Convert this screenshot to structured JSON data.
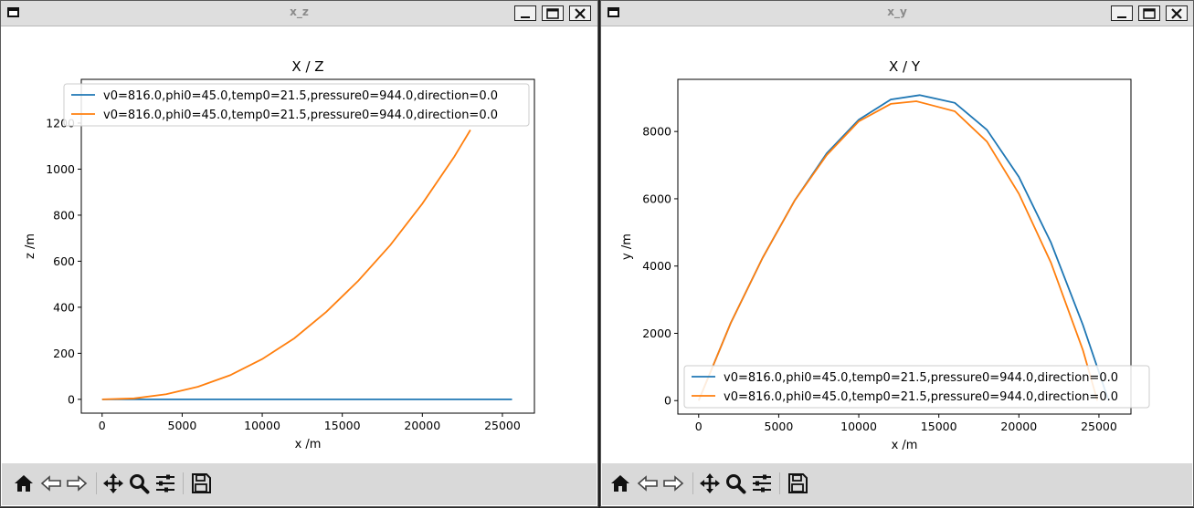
{
  "windows": [
    {
      "title": "x_z",
      "chart_data": {
        "type": "line",
        "title": "X / Z",
        "xlabel": "x /m",
        "ylabel": "z /m",
        "xlim": [
          -1300,
          27000
        ],
        "ylim": [
          -60,
          1390
        ],
        "xticks": [
          0,
          5000,
          10000,
          15000,
          20000,
          25000
        ],
        "yticks": [
          0,
          200,
          400,
          600,
          800,
          1000,
          1200
        ],
        "legend_loc": "upper left",
        "series": [
          {
            "name": "v0=816.0,phi0=45.0,temp0=21.5,pressure0=944.0,direction=0.0",
            "color": "#1f77b4",
            "x": [
              0,
              5000,
              10000,
              15000,
              20000,
              25600
            ],
            "y": [
              0,
              0,
              0,
              0,
              0,
              0
            ]
          },
          {
            "name": "v0=816.0,phi0=45.0,temp0=21.5,pressure0=944.0,direction=0.0",
            "color": "#ff7f0e",
            "x": [
              0,
              2000,
              4000,
              6000,
              8000,
              10000,
              12000,
              14000,
              16000,
              18000,
              20000,
              22000,
              23000
            ],
            "y": [
              0,
              4,
              22,
              55,
              105,
              175,
              265,
              380,
              515,
              670,
              850,
              1055,
              1170
            ]
          }
        ]
      }
    },
    {
      "title": "x_y",
      "chart_data": {
        "type": "line",
        "title": "X / Y",
        "xlabel": "x /m",
        "ylabel": "y /m",
        "xlim": [
          -1300,
          27000
        ],
        "ylim": [
          -400,
          9550
        ],
        "xticks": [
          0,
          5000,
          10000,
          15000,
          20000,
          25000
        ],
        "yticks": [
          0,
          2000,
          4000,
          6000,
          8000
        ],
        "legend_loc": "lower left",
        "series": [
          {
            "name": "v0=816.0,phi0=45.0,temp0=21.5,pressure0=944.0,direction=0.0",
            "color": "#1f77b4",
            "x": [
              0,
              2000,
              4000,
              6000,
              8000,
              10000,
              12000,
              13800,
              16000,
              18000,
              20000,
              22000,
              24000,
              25600
            ],
            "y": [
              0,
              2300,
              4250,
              5950,
              7350,
              8350,
              8950,
              9080,
              8850,
              8050,
              6650,
              4700,
              2250,
              0
            ]
          },
          {
            "name": "v0=816.0,phi0=45.0,temp0=21.5,pressure0=944.0,direction=0.0",
            "color": "#ff7f0e",
            "x": [
              0,
              2000,
              4000,
              6000,
              8000,
              10000,
              12000,
              13600,
              16000,
              18000,
              20000,
              22000,
              24000,
              24900
            ],
            "y": [
              0,
              2300,
              4250,
              5950,
              7300,
              8300,
              8820,
              8900,
              8600,
              7700,
              6150,
              4100,
              1500,
              0
            ]
          }
        ]
      }
    }
  ],
  "icons": [
    "window-menu-icon",
    "minimize-icon",
    "maximize-icon",
    "close-icon",
    "home-icon",
    "back-icon",
    "forward-icon",
    "pan-icon",
    "zoom-icon",
    "configure-subplots-icon",
    "save-icon"
  ]
}
